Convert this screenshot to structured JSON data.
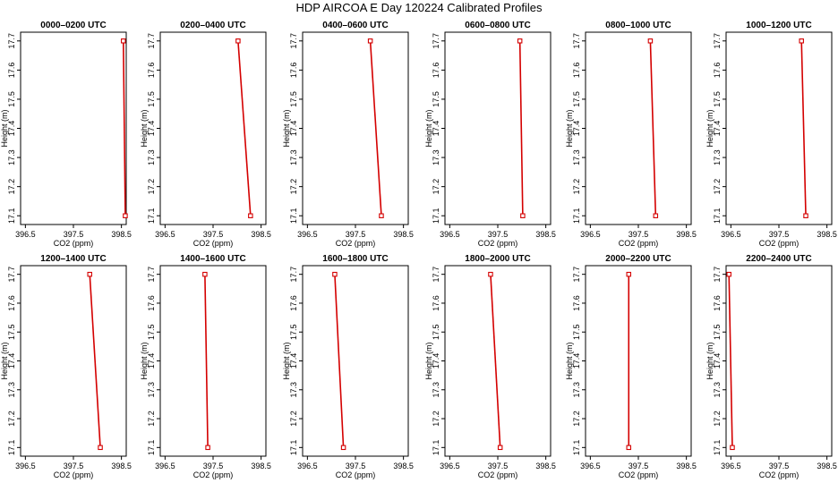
{
  "title": "HDP AIRCOA E  Day 120224  Calibrated Profiles",
  "colors": {
    "line": "#d40000",
    "frame": "#000000"
  },
  "chart_data": [
    {
      "type": "line",
      "title": "0000–0200 UTC",
      "xlabel": "CO2 (ppm)",
      "ylabel": "Height (m)",
      "xlim": [
        396.4,
        398.6
      ],
      "ylim": [
        17.07,
        17.73
      ],
      "xticks": [
        "396.5",
        "397.5",
        "398.5"
      ],
      "xticks_values": [
        396.5,
        397.5,
        398.5
      ],
      "yticks": [
        "17.1",
        "17.2",
        "17.3",
        "17.4",
        "17.5",
        "17.6",
        "17.7"
      ],
      "series": [
        {
          "x": [
            398.54,
            398.58
          ],
          "y": [
            17.7,
            17.1
          ]
        }
      ]
    },
    {
      "type": "line",
      "title": "0200–0400 UTC",
      "xlabel": "CO2 (ppm)",
      "ylabel": "Height (m)",
      "xlim": [
        396.4,
        398.6
      ],
      "ylim": [
        17.07,
        17.73
      ],
      "xticks": [
        "396.5",
        "397.5",
        "398.5"
      ],
      "xticks_values": [
        396.5,
        397.5,
        398.5
      ],
      "yticks": [
        "17.1",
        "17.2",
        "17.3",
        "17.4",
        "17.5",
        "17.6",
        "17.7"
      ],
      "series": [
        {
          "x": [
            398.02,
            398.28
          ],
          "y": [
            17.7,
            17.1
          ]
        }
      ]
    },
    {
      "type": "line",
      "title": "0400–0600 UTC",
      "xlabel": "CO2 (ppm)",
      "ylabel": "Height (m)",
      "xlim": [
        396.4,
        398.6
      ],
      "ylim": [
        17.07,
        17.73
      ],
      "xticks": [
        "396.5",
        "397.5",
        "398.5"
      ],
      "xticks_values": [
        396.5,
        397.5,
        398.5
      ],
      "yticks": [
        "17.1",
        "17.2",
        "17.3",
        "17.4",
        "17.5",
        "17.6",
        "17.7"
      ],
      "series": [
        {
          "x": [
            397.81,
            398.04
          ],
          "y": [
            17.7,
            17.1
          ]
        }
      ]
    },
    {
      "type": "line",
      "title": "0600–0800 UTC",
      "xlabel": "CO2 (ppm)",
      "ylabel": "Height (m)",
      "xlim": [
        396.4,
        398.6
      ],
      "ylim": [
        17.07,
        17.73
      ],
      "xticks": [
        "396.5",
        "397.5",
        "398.5"
      ],
      "xticks_values": [
        396.5,
        397.5,
        398.5
      ],
      "yticks": [
        "17.1",
        "17.2",
        "17.3",
        "17.4",
        "17.5",
        "17.6",
        "17.7"
      ],
      "series": [
        {
          "x": [
            397.96,
            398.02
          ],
          "y": [
            17.7,
            17.1
          ]
        }
      ]
    },
    {
      "type": "line",
      "title": "0800–1000 UTC",
      "xlabel": "CO2 (ppm)",
      "ylabel": "Height (m)",
      "xlim": [
        396.4,
        398.6
      ],
      "ylim": [
        17.07,
        17.73
      ],
      "xticks": [
        "396.5",
        "397.5",
        "398.5"
      ],
      "xticks_values": [
        396.5,
        397.5,
        398.5
      ],
      "yticks": [
        "17.1",
        "17.2",
        "17.3",
        "17.4",
        "17.5",
        "17.6",
        "17.7"
      ],
      "series": [
        {
          "x": [
            397.75,
            397.86
          ],
          "y": [
            17.7,
            17.1
          ]
        }
      ]
    },
    {
      "type": "line",
      "title": "1000–1200 UTC",
      "xlabel": "CO2 (ppm)",
      "ylabel": "Height (m)",
      "xlim": [
        396.4,
        398.6
      ],
      "ylim": [
        17.07,
        17.73
      ],
      "xticks": [
        "396.5",
        "397.5",
        "398.5"
      ],
      "xticks_values": [
        396.5,
        397.5,
        398.5
      ],
      "yticks": [
        "17.1",
        "17.2",
        "17.3",
        "17.4",
        "17.5",
        "17.6",
        "17.7"
      ],
      "series": [
        {
          "x": [
            397.97,
            398.06
          ],
          "y": [
            17.7,
            17.1
          ]
        }
      ]
    },
    {
      "type": "line",
      "title": "1200–1400 UTC",
      "xlabel": "CO2 (ppm)",
      "ylabel": "Height (m)",
      "xlim": [
        396.4,
        398.6
      ],
      "ylim": [
        17.07,
        17.73
      ],
      "xticks": [
        "396.5",
        "397.5",
        "398.5"
      ],
      "xticks_values": [
        396.5,
        397.5,
        398.5
      ],
      "yticks": [
        "17.1",
        "17.2",
        "17.3",
        "17.4",
        "17.5",
        "17.6",
        "17.7"
      ],
      "series": [
        {
          "x": [
            397.84,
            398.06
          ],
          "y": [
            17.7,
            17.1
          ]
        }
      ]
    },
    {
      "type": "line",
      "title": "1400–1600 UTC",
      "xlabel": "CO2 (ppm)",
      "ylabel": "Height (m)",
      "xlim": [
        396.4,
        398.6
      ],
      "ylim": [
        17.07,
        17.73
      ],
      "xticks": [
        "396.5",
        "397.5",
        "398.5"
      ],
      "xticks_values": [
        396.5,
        397.5,
        398.5
      ],
      "yticks": [
        "17.1",
        "17.2",
        "17.3",
        "17.4",
        "17.5",
        "17.6",
        "17.7"
      ],
      "series": [
        {
          "x": [
            397.33,
            397.39
          ],
          "y": [
            17.7,
            17.1
          ]
        }
      ]
    },
    {
      "type": "line",
      "title": "1600–1800 UTC",
      "xlabel": "CO2 (ppm)",
      "ylabel": "Height (m)",
      "xlim": [
        396.4,
        398.6
      ],
      "ylim": [
        17.07,
        17.73
      ],
      "xticks": [
        "396.5",
        "397.5",
        "398.5"
      ],
      "xticks_values": [
        396.5,
        397.5,
        398.5
      ],
      "yticks": [
        "17.1",
        "17.2",
        "17.3",
        "17.4",
        "17.5",
        "17.6",
        "17.7"
      ],
      "series": [
        {
          "x": [
            397.07,
            397.25
          ],
          "y": [
            17.7,
            17.1
          ]
        }
      ]
    },
    {
      "type": "line",
      "title": "1800–2000 UTC",
      "xlabel": "CO2 (ppm)",
      "ylabel": "Height (m)",
      "xlim": [
        396.4,
        398.6
      ],
      "ylim": [
        17.07,
        17.73
      ],
      "xticks": [
        "396.5",
        "397.5",
        "398.5"
      ],
      "xticks_values": [
        396.5,
        397.5,
        398.5
      ],
      "yticks": [
        "17.1",
        "17.2",
        "17.3",
        "17.4",
        "17.5",
        "17.6",
        "17.7"
      ],
      "series": [
        {
          "x": [
            397.35,
            397.55
          ],
          "y": [
            17.7,
            17.1
          ]
        }
      ]
    },
    {
      "type": "line",
      "title": "2000–2200 UTC",
      "xlabel": "CO2 (ppm)",
      "ylabel": "Height (m)",
      "xlim": [
        396.4,
        398.6
      ],
      "ylim": [
        17.07,
        17.73
      ],
      "xticks": [
        "396.5",
        "397.5",
        "398.5"
      ],
      "xticks_values": [
        396.5,
        397.5,
        398.5
      ],
      "yticks": [
        "17.1",
        "17.2",
        "17.3",
        "17.4",
        "17.5",
        "17.6",
        "17.7"
      ],
      "series": [
        {
          "x": [
            397.3,
            397.3
          ],
          "y": [
            17.7,
            17.1
          ]
        }
      ]
    },
    {
      "type": "line",
      "title": "2200–2400 UTC",
      "xlabel": "CO2 (ppm)",
      "ylabel": "Height (m)",
      "xlim": [
        396.4,
        398.6
      ],
      "ylim": [
        17.07,
        17.73
      ],
      "xticks": [
        "396.5",
        "397.5",
        "398.5"
      ],
      "xticks_values": [
        396.5,
        397.5,
        398.5
      ],
      "yticks": [
        "17.1",
        "17.2",
        "17.3",
        "17.4",
        "17.5",
        "17.6",
        "17.7"
      ],
      "series": [
        {
          "x": [
            396.46,
            396.53
          ],
          "y": [
            17.7,
            17.1
          ]
        }
      ]
    }
  ]
}
